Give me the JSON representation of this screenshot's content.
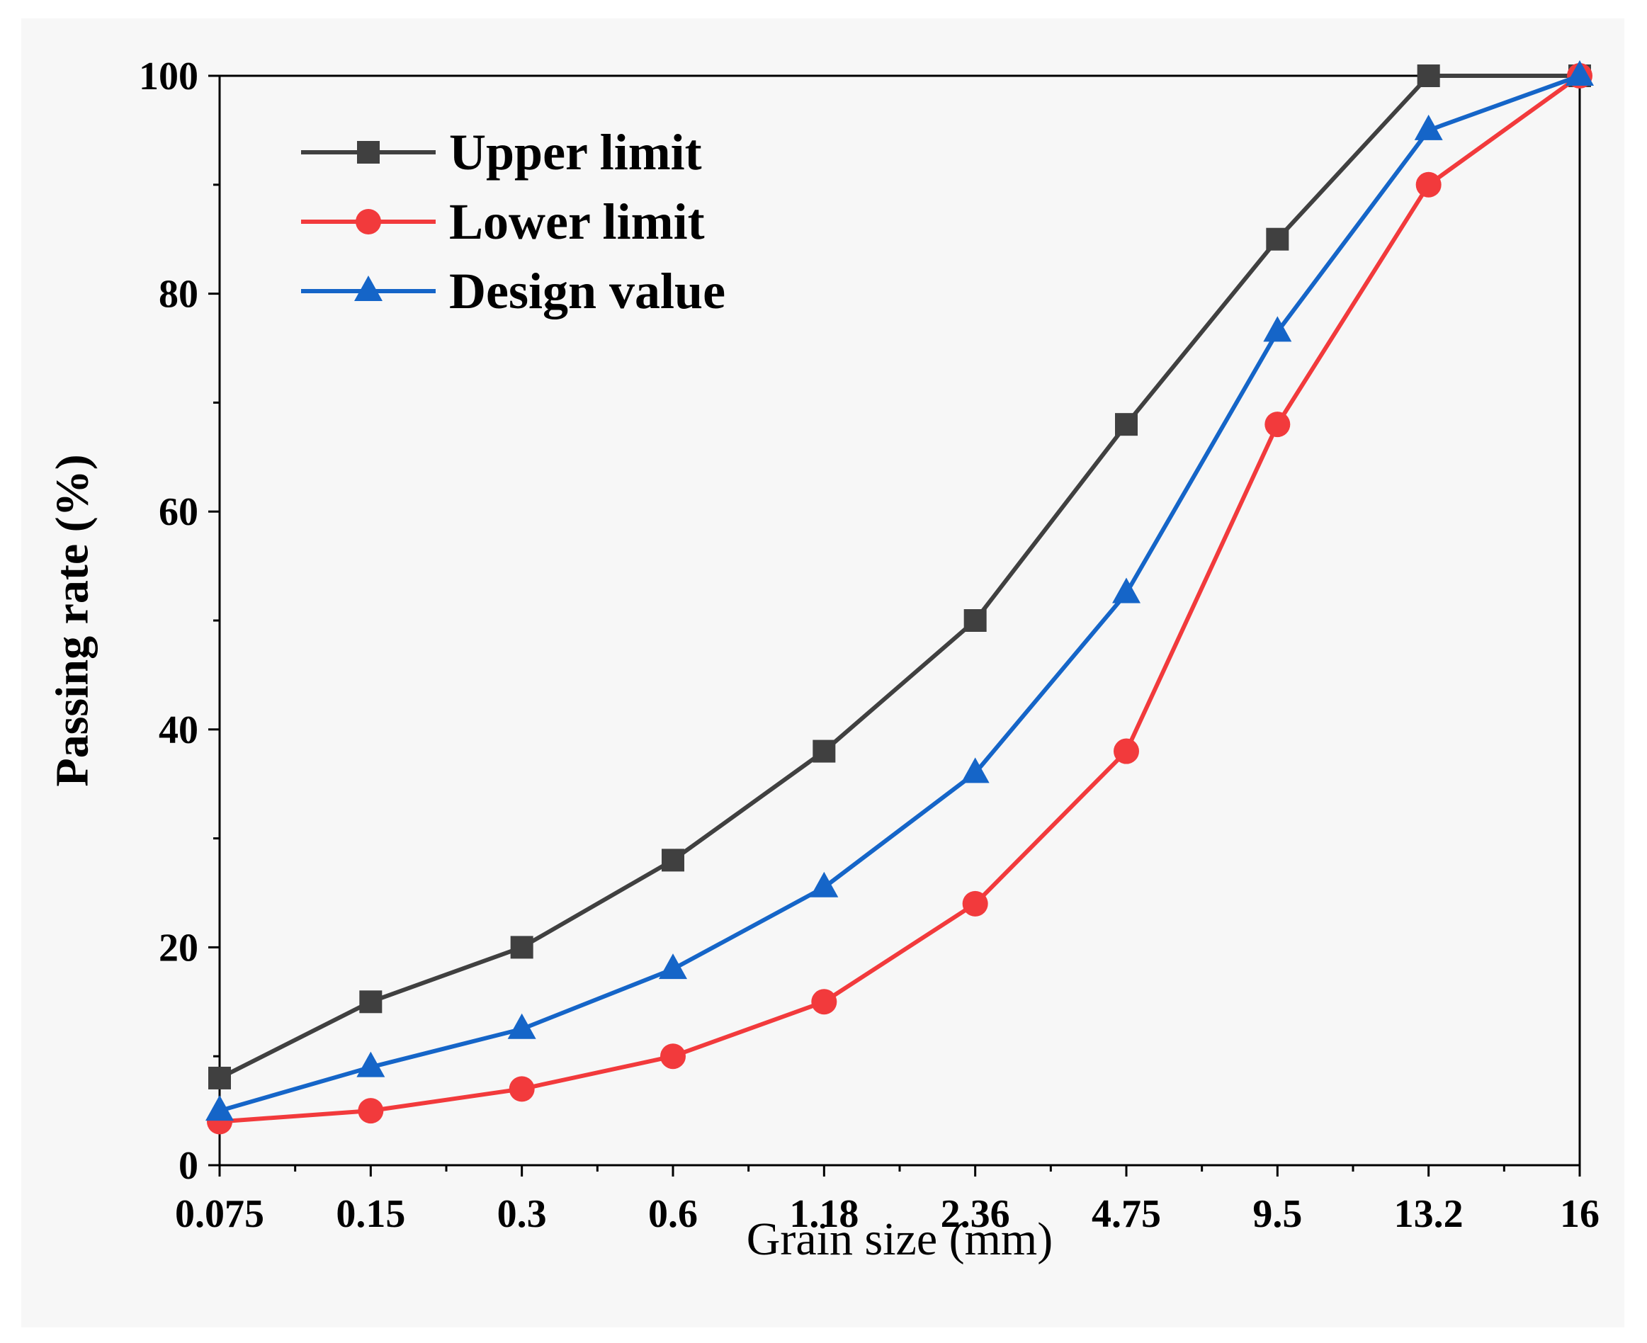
{
  "chart_data": {
    "type": "line",
    "title": "",
    "xlabel": "Grain size (mm)",
    "ylabel": "Passing rate (%)",
    "categories": [
      "0.075",
      "0.15",
      "0.3",
      "0.6",
      "1.18",
      "2.36",
      "4.75",
      "9.5",
      "13.2",
      "16"
    ],
    "ylim": [
      0,
      100
    ],
    "yticks": [
      "0",
      "20",
      "40",
      "60",
      "80",
      "100"
    ],
    "grid": false,
    "legend_position": "top-left",
    "series": [
      {
        "name": "Upper limit",
        "color": "#404040",
        "marker": "square",
        "values": [
          8,
          15,
          20,
          28,
          38,
          50,
          68,
          85,
          100,
          100
        ]
      },
      {
        "name": "Lower limit",
        "color": "#f23a3c",
        "marker": "circle",
        "values": [
          4,
          5,
          7,
          10,
          15,
          24,
          38,
          68,
          90,
          100
        ]
      },
      {
        "name": "Design value",
        "color": "#1565c8",
        "marker": "triangle",
        "values": [
          5,
          9,
          12.5,
          18,
          25.5,
          36,
          52.5,
          76.5,
          95,
          100
        ]
      }
    ]
  }
}
